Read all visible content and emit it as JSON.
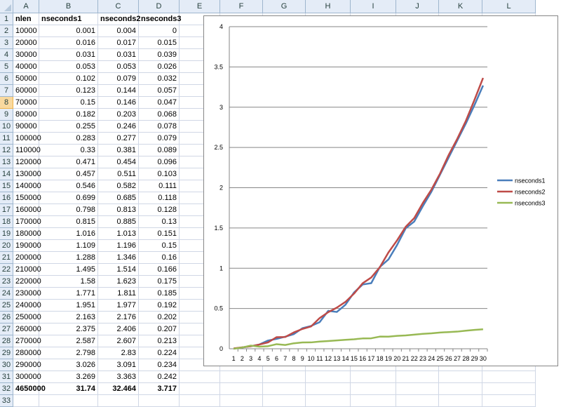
{
  "columns": [
    "A",
    "B",
    "C",
    "D",
    "E",
    "F",
    "G",
    "H",
    "I",
    "J",
    "K",
    "L"
  ],
  "rows": [
    [
      "nlen",
      "nseconds1",
      "nseconds2",
      "nseconds3"
    ],
    [
      "10000",
      "0.001",
      "0.004",
      "0"
    ],
    [
      "20000",
      "0.016",
      "0.017",
      "0.015"
    ],
    [
      "30000",
      "0.031",
      "0.031",
      "0.039"
    ],
    [
      "40000",
      "0.053",
      "0.053",
      "0.026"
    ],
    [
      "50000",
      "0.102",
      "0.079",
      "0.032"
    ],
    [
      "60000",
      "0.123",
      "0.144",
      "0.057"
    ],
    [
      "70000",
      "0.15",
      "0.146",
      "0.047"
    ],
    [
      "80000",
      "0.182",
      "0.203",
      "0.068"
    ],
    [
      "90000",
      "0.255",
      "0.246",
      "0.078"
    ],
    [
      "100000",
      "0.283",
      "0.277",
      "0.079"
    ],
    [
      "110000",
      "0.33",
      "0.381",
      "0.089"
    ],
    [
      "120000",
      "0.471",
      "0.454",
      "0.096"
    ],
    [
      "130000",
      "0.457",
      "0.511",
      "0.103"
    ],
    [
      "140000",
      "0.546",
      "0.582",
      "0.111"
    ],
    [
      "150000",
      "0.699",
      "0.685",
      "0.118"
    ],
    [
      "160000",
      "0.798",
      "0.813",
      "0.128"
    ],
    [
      "170000",
      "0.815",
      "0.885",
      "0.13"
    ],
    [
      "180000",
      "1.016",
      "1.013",
      "0.151"
    ],
    [
      "190000",
      "1.109",
      "1.196",
      "0.15"
    ],
    [
      "200000",
      "1.288",
      "1.346",
      "0.16"
    ],
    [
      "210000",
      "1.495",
      "1.514",
      "0.166"
    ],
    [
      "220000",
      "1.58",
      "1.623",
      "0.175"
    ],
    [
      "230000",
      "1.771",
      "1.811",
      "0.185"
    ],
    [
      "240000",
      "1.951",
      "1.977",
      "0.192"
    ],
    [
      "250000",
      "2.163",
      "2.176",
      "0.202"
    ],
    [
      "260000",
      "2.375",
      "2.406",
      "0.207"
    ],
    [
      "270000",
      "2.587",
      "2.607",
      "0.213"
    ],
    [
      "280000",
      "2.798",
      "2.83",
      "0.224"
    ],
    [
      "290000",
      "3.026",
      "3.091",
      "0.234"
    ],
    [
      "300000",
      "3.269",
      "3.363",
      "0.242"
    ],
    [
      "4650000",
      "31.74",
      "32.464",
      "3.717"
    ],
    [
      "",
      "",
      "",
      ""
    ]
  ],
  "selected_row": 8,
  "chart_data": {
    "type": "line",
    "x": [
      1,
      2,
      3,
      4,
      5,
      6,
      7,
      8,
      9,
      10,
      11,
      12,
      13,
      14,
      15,
      16,
      17,
      18,
      19,
      20,
      21,
      22,
      23,
      24,
      25,
      26,
      27,
      28,
      29,
      30
    ],
    "ylim": [
      0,
      4
    ],
    "yticks": [
      "0",
      "0.5",
      "1",
      "1.5",
      "2",
      "2.5",
      "3",
      "3.5",
      "4"
    ],
    "grid": true,
    "legend_position": "right",
    "series": [
      {
        "name": "nseconds1",
        "color": "#4a7ebb",
        "values": [
          0.001,
          0.016,
          0.031,
          0.053,
          0.102,
          0.123,
          0.15,
          0.182,
          0.255,
          0.283,
          0.33,
          0.471,
          0.457,
          0.546,
          0.699,
          0.798,
          0.815,
          1.016,
          1.109,
          1.288,
          1.495,
          1.58,
          1.771,
          1.951,
          2.163,
          2.375,
          2.587,
          2.798,
          3.026,
          3.269
        ]
      },
      {
        "name": "nseconds2",
        "color": "#be4b48",
        "values": [
          0.004,
          0.017,
          0.031,
          0.053,
          0.079,
          0.144,
          0.146,
          0.203,
          0.246,
          0.277,
          0.381,
          0.454,
          0.511,
          0.582,
          0.685,
          0.813,
          0.885,
          1.013,
          1.196,
          1.346,
          1.514,
          1.623,
          1.811,
          1.977,
          2.176,
          2.406,
          2.607,
          2.83,
          3.091,
          3.363
        ]
      },
      {
        "name": "nseconds3",
        "color": "#98b954",
        "values": [
          0,
          0.015,
          0.039,
          0.026,
          0.032,
          0.057,
          0.047,
          0.068,
          0.078,
          0.079,
          0.089,
          0.096,
          0.103,
          0.111,
          0.118,
          0.128,
          0.13,
          0.151,
          0.15,
          0.16,
          0.166,
          0.175,
          0.185,
          0.192,
          0.202,
          0.207,
          0.213,
          0.224,
          0.234,
          0.242
        ]
      }
    ]
  }
}
